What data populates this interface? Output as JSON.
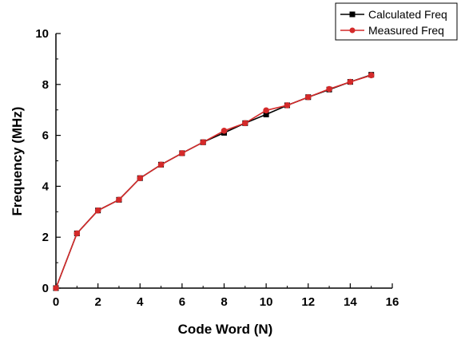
{
  "chart_data": {
    "type": "line",
    "title": "",
    "xlabel": "Code Word (N)",
    "ylabel": "Frequency (MHz)",
    "xlim": [
      0,
      16
    ],
    "ylim": [
      0,
      10
    ],
    "x_ticks": [
      0,
      2,
      4,
      6,
      8,
      10,
      12,
      14,
      16
    ],
    "y_ticks": [
      0,
      2,
      4,
      6,
      8,
      10
    ],
    "grid": false,
    "legend_position": "top-right",
    "x": [
      0,
      1,
      2,
      3,
      4,
      5,
      6,
      7,
      8,
      9,
      10,
      11,
      12,
      13,
      14,
      15
    ],
    "series": [
      {
        "name": "Calculated Freq",
        "color": "#000000",
        "marker": "square",
        "values": [
          0,
          2.15,
          3.05,
          3.47,
          4.32,
          4.85,
          5.3,
          5.73,
          6.1,
          6.48,
          6.82,
          7.18,
          7.5,
          7.8,
          8.1,
          8.38
        ]
      },
      {
        "name": "Measured Freq",
        "color": "#d42a2a",
        "marker": "circle",
        "values": [
          0,
          2.15,
          3.05,
          3.47,
          4.32,
          4.85,
          5.3,
          5.73,
          6.18,
          6.48,
          6.98,
          7.18,
          7.5,
          7.82,
          8.1,
          8.36
        ]
      }
    ]
  }
}
